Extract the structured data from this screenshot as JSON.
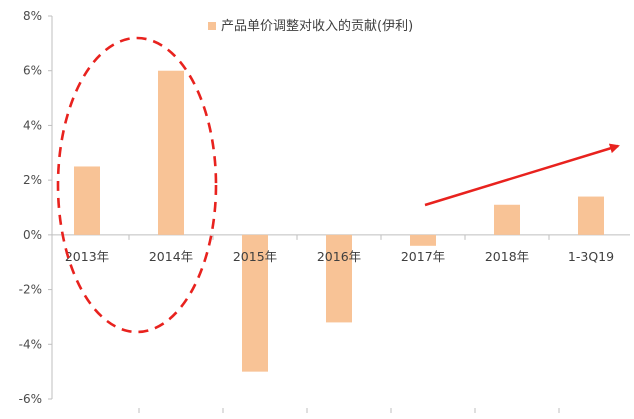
{
  "chart_data": {
    "type": "bar",
    "categories": [
      "2013年",
      "2014年",
      "2015年",
      "2016年",
      "2017年",
      "2018年",
      "1-3Q19"
    ],
    "series": [
      {
        "name": "产品单价调整对收入的贡献(伊利)",
        "values": [
          2.5,
          6.0,
          -5.0,
          -3.2,
          -0.4,
          1.1,
          1.4
        ]
      }
    ],
    "ylim": [
      -6,
      8
    ],
    "yticks": [
      -6,
      -4,
      -2,
      0,
      2,
      4,
      6,
      8
    ],
    "ytick_labels": [
      "-6%",
      "-4%",
      "-2%",
      "0%",
      "2%",
      "4%",
      "6%",
      "8%"
    ],
    "legend_position": "top",
    "grid": false,
    "colors": {
      "bar": "#f8c396",
      "annotation": "#e8221e",
      "axis": "#bfbfbf"
    },
    "annotations": [
      {
        "type": "dashed-ellipse",
        "around_categories": [
          "2013年",
          "2014年"
        ],
        "color": "#e8221e"
      },
      {
        "type": "arrow",
        "from_category": "2017年",
        "to_category": "1-3Q19",
        "direction": "upward",
        "color": "#e8221e"
      }
    ]
  }
}
